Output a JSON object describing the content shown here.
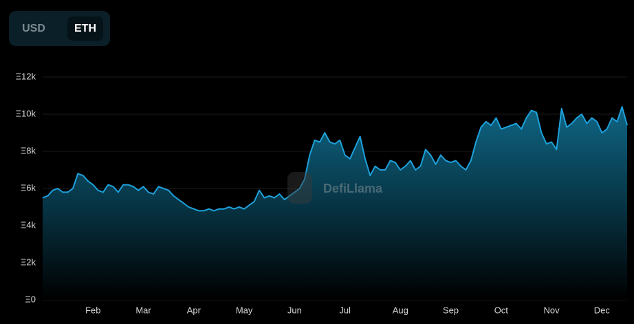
{
  "toggle": {
    "options": [
      "USD",
      "ETH"
    ]
  },
  "chart_data": {
    "type": "area",
    "watermark": "DefiLlama",
    "color": "#1da1db",
    "grid": true,
    "ylim": [
      0,
      12000
    ],
    "yticks": [
      {
        "value": 0,
        "label": "Ξ0"
      },
      {
        "value": 2000,
        "label": "Ξ2k"
      },
      {
        "value": 4000,
        "label": "Ξ4k"
      },
      {
        "value": 6000,
        "label": "Ξ6k"
      },
      {
        "value": 8000,
        "label": "Ξ8k"
      },
      {
        "value": 10000,
        "label": "Ξ10k"
      },
      {
        "value": 12000,
        "label": "Ξ12k"
      }
    ],
    "categories": [
      null,
      null,
      null,
      null,
      null,
      null,
      null,
      null,
      null,
      null,
      "Feb",
      null,
      null,
      null,
      null,
      null,
      null,
      null,
      null,
      null,
      "Mar",
      null,
      null,
      null,
      null,
      null,
      null,
      null,
      null,
      null,
      "Apr",
      null,
      null,
      null,
      null,
      null,
      null,
      null,
      null,
      null,
      "May",
      null,
      null,
      null,
      null,
      null,
      null,
      null,
      null,
      null,
      "Jun",
      null,
      null,
      null,
      null,
      null,
      null,
      null,
      null,
      null,
      "Jul",
      null,
      null,
      null,
      null,
      null,
      null,
      null,
      null,
      null,
      null,
      "Aug",
      null,
      null,
      null,
      null,
      null,
      null,
      null,
      null,
      null,
      "Sep",
      null,
      null,
      null,
      null,
      null,
      null,
      null,
      null,
      null,
      "Oct",
      null,
      null,
      null,
      null,
      null,
      null,
      null,
      null,
      null,
      "Nov",
      null,
      null,
      null,
      null,
      null,
      null,
      null,
      null,
      null,
      "Dec",
      null,
      null,
      null,
      null,
      null
    ],
    "values": [
      5500,
      5600,
      5900,
      6000,
      5800,
      5800,
      6000,
      6800,
      6700,
      6400,
      6200,
      5900,
      5800,
      6200,
      6100,
      5800,
      6200,
      6200,
      6100,
      5900,
      6100,
      5800,
      5700,
      6100,
      6000,
      5900,
      5600,
      5400,
      5200,
      5000,
      4900,
      4800,
      4800,
      4900,
      4800,
      4900,
      4900,
      5000,
      4900,
      5000,
      4900,
      5100,
      5300,
      5900,
      5500,
      5600,
      5500,
      5700,
      5400,
      5600,
      5800,
      6000,
      6500,
      7800,
      8600,
      8500,
      9000,
      8500,
      8400,
      8600,
      7800,
      7600,
      8200,
      8800,
      7600,
      6700,
      7200,
      7000,
      7000,
      7500,
      7400,
      7000,
      7200,
      7500,
      7000,
      7200,
      8100,
      7800,
      7300,
      7800,
      7500,
      7400,
      7500,
      7200,
      7000,
      7500,
      8500,
      9300,
      9600,
      9400,
      9800,
      9200,
      9300,
      9400,
      9500,
      9200,
      9800,
      10200,
      10100,
      9000,
      8400,
      8500,
      8100,
      10300,
      9300,
      9500,
      9800,
      10000,
      9500,
      9800,
      9600,
      9000,
      9200,
      9800,
      9600,
      10400,
      9400
    ]
  }
}
